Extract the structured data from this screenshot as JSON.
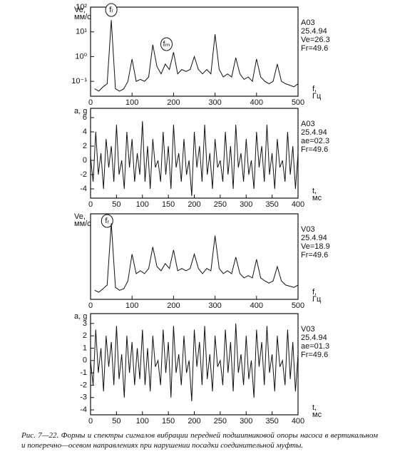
{
  "chart_data": [
    {
      "type": "line",
      "log_y": true,
      "color": "#111",
      "y_label": [
        "Ve,",
        "мм/с"
      ],
      "x_label": [
        "f,",
        "Гц"
      ],
      "info": [
        "A03",
        "25.4.94",
        "Ve=26.3",
        "Fr=49.6"
      ],
      "annotations": [
        "fᵣ",
        "fₘ"
      ],
      "xlim": [
        0,
        500
      ],
      "xticks": [
        0,
        100,
        200,
        300,
        400,
        500
      ],
      "ylim": [
        0.025,
        100
      ],
      "yticks": [
        {
          "value": 0.1,
          "label": "10⁻¹"
        },
        {
          "value": 1,
          "label": "10⁰"
        },
        {
          "value": 10,
          "label": "10¹"
        },
        {
          "value": 100,
          "label": "10²"
        }
      ],
      "x": [
        10,
        20,
        30,
        40,
        50,
        60,
        70,
        80,
        90,
        100,
        110,
        120,
        130,
        140,
        150,
        160,
        170,
        180,
        190,
        200,
        210,
        220,
        230,
        240,
        250,
        260,
        270,
        280,
        290,
        300,
        310,
        320,
        330,
        340,
        350,
        360,
        370,
        380,
        390,
        400,
        410,
        420,
        430,
        440,
        450,
        460,
        470,
        480,
        490,
        500
      ],
      "values": [
        0.05,
        0.04,
        0.06,
        0.08,
        30,
        0.05,
        0.04,
        0.05,
        0.1,
        0.8,
        0.1,
        0.12,
        0.1,
        0.15,
        3,
        0.4,
        0.2,
        0.5,
        0.3,
        1.5,
        0.2,
        0.3,
        0.25,
        0.3,
        1.0,
        0.3,
        0.2,
        0.3,
        0.2,
        8,
        0.3,
        0.15,
        0.2,
        0.15,
        0.9,
        0.2,
        0.12,
        0.15,
        0.1,
        0.8,
        0.15,
        0.1,
        0.08,
        0.1,
        0.5,
        0.1,
        0.08,
        0.07,
        0.06,
        0.08
      ]
    },
    {
      "type": "line",
      "color": "#111",
      "y_label": [
        "a, g"
      ],
      "x_label": [
        "t,",
        "мс"
      ],
      "info": [
        "A03",
        "25.4.94",
        "ae=02.3",
        "Fr=49.6"
      ],
      "xlim": [
        0,
        400
      ],
      "xticks": [
        0,
        50,
        100,
        150,
        200,
        250,
        300,
        350,
        400
      ],
      "ylim": [
        -5.3,
        7.3
      ],
      "yticks": [
        -4,
        -2,
        0,
        2,
        4,
        6
      ],
      "x": [
        0,
        5,
        10,
        15,
        20,
        25,
        30,
        35,
        40,
        45,
        50,
        55,
        60,
        65,
        70,
        75,
        80,
        85,
        90,
        95,
        100,
        105,
        110,
        115,
        120,
        125,
        130,
        135,
        140,
        145,
        150,
        155,
        160,
        165,
        170,
        175,
        180,
        185,
        190,
        195,
        200,
        205,
        210,
        215,
        220,
        225,
        230,
        235,
        240,
        245,
        250,
        255,
        260,
        265,
        270,
        275,
        280,
        285,
        290,
        295,
        300,
        305,
        310,
        315,
        320,
        325,
        330,
        335,
        340,
        345,
        350,
        355,
        360,
        365,
        370,
        375,
        380,
        385,
        390,
        395,
        400
      ],
      "values": [
        0.5,
        -3,
        4,
        -2,
        1,
        -4,
        3,
        -1,
        2,
        -3,
        5,
        -2,
        0,
        -4,
        4,
        -1,
        3,
        -3,
        1,
        -2,
        5.5,
        -3,
        2,
        -4,
        3,
        -1,
        0,
        -3,
        4,
        -2,
        2,
        -4,
        5,
        -1,
        1,
        -3,
        3,
        -2,
        0,
        -5,
        4,
        -1,
        2,
        -3,
        5,
        -2,
        1,
        -4,
        3,
        -1,
        0,
        -3,
        4,
        -2,
        2,
        -4,
        5,
        -1,
        1,
        -3,
        3,
        -2,
        0,
        -4,
        4,
        -1,
        2,
        -3,
        5,
        -2,
        1,
        -4,
        3,
        -1,
        0,
        -3,
        4,
        -2,
        2,
        -4,
        1
      ]
    },
    {
      "type": "line",
      "log_y": true,
      "color": "#111",
      "y_label": [
        "Ve,",
        "мм/с"
      ],
      "x_label": [
        "f,",
        "Гц"
      ],
      "info": [
        "V03",
        "25.4.94",
        "Ve=18.9",
        "Fr=49.6"
      ],
      "annotations": [
        "fᵣ"
      ],
      "xlim": [
        0,
        500
      ],
      "xticks": [
        0,
        100,
        200,
        300,
        400,
        500
      ],
      "ylim": [
        0.025,
        100
      ],
      "x": [
        10,
        20,
        30,
        40,
        50,
        60,
        70,
        80,
        90,
        100,
        110,
        120,
        130,
        140,
        150,
        160,
        170,
        180,
        190,
        200,
        210,
        220,
        230,
        240,
        250,
        260,
        270,
        280,
        290,
        300,
        310,
        320,
        330,
        340,
        350,
        360,
        370,
        380,
        390,
        400,
        410,
        420,
        430,
        440,
        450,
        460,
        470,
        480,
        490,
        500
      ],
      "values": [
        0.06,
        0.05,
        0.07,
        0.1,
        40,
        0.08,
        0.06,
        0.07,
        0.15,
        2,
        0.3,
        0.4,
        0.3,
        0.5,
        4,
        0.6,
        0.4,
        0.8,
        0.5,
        3,
        0.4,
        0.5,
        0.4,
        0.5,
        2,
        0.5,
        0.3,
        0.5,
        0.4,
        12,
        0.5,
        0.3,
        0.4,
        0.3,
        1.5,
        0.3,
        0.2,
        0.25,
        0.2,
        1.2,
        0.2,
        0.15,
        0.12,
        0.15,
        0.6,
        0.15,
        0.1,
        0.09,
        0.08,
        0.1
      ]
    },
    {
      "type": "line",
      "color": "#111",
      "y_label": [
        "a, g"
      ],
      "x_label": [
        "t,",
        "мс"
      ],
      "info": [
        "V03",
        "25.4.94",
        "ae=01.3",
        "Fr=49.6"
      ],
      "xlim": [
        0,
        400
      ],
      "xticks": [
        0,
        50,
        100,
        150,
        200,
        250,
        300,
        350,
        400
      ],
      "ylim": [
        -4.4,
        3.8
      ],
      "yticks": [
        -4,
        -3,
        -2,
        -1,
        0,
        1,
        2,
        3
      ],
      "x": [
        0,
        5,
        10,
        15,
        20,
        25,
        30,
        35,
        40,
        45,
        50,
        55,
        60,
        65,
        70,
        75,
        80,
        85,
        90,
        95,
        100,
        105,
        110,
        115,
        120,
        125,
        130,
        135,
        140,
        145,
        150,
        155,
        160,
        165,
        170,
        175,
        180,
        185,
        190,
        195,
        200,
        205,
        210,
        215,
        220,
        225,
        230,
        235,
        240,
        245,
        250,
        255,
        260,
        265,
        270,
        275,
        280,
        285,
        290,
        295,
        300,
        305,
        310,
        315,
        320,
        325,
        330,
        335,
        340,
        345,
        350,
        355,
        360,
        365,
        370,
        375,
        380,
        385,
        390,
        395,
        400
      ],
      "values": [
        0,
        -2,
        2.5,
        -1,
        1,
        -2.5,
        2,
        -0.5,
        1.5,
        -2,
        2.8,
        -1.5,
        0.5,
        -3,
        2,
        -1,
        1.5,
        -2,
        1,
        -1.5,
        2.5,
        -2,
        1,
        -2.5,
        2,
        -0.5,
        0,
        -2,
        2.5,
        -1,
        1.5,
        -3,
        2.8,
        -1,
        0.5,
        -2,
        2,
        -1,
        0,
        -3.3,
        2.5,
        -0.5,
        1.5,
        -2,
        2.8,
        -1.5,
        0.5,
        -2.5,
        2,
        -0.5,
        0,
        -2,
        2.5,
        -1,
        1.5,
        -2.5,
        3,
        -1,
        0.5,
        -2,
        2,
        -1.5,
        0,
        -3,
        2.5,
        -0.5,
        1.5,
        -2,
        2.8,
        -1,
        0.5,
        -2.5,
        2,
        -0.5,
        0,
        -2,
        2.5,
        -1.5,
        1.5,
        -2.5,
        0.5
      ]
    }
  ],
  "caption": "Рис. 7—22. Формы и спектры сигналов вибрации передней подшипниковой опоры насоса в вертикальном и поперечно—осевом направлениях при нарушении посадки соединительной муфты."
}
